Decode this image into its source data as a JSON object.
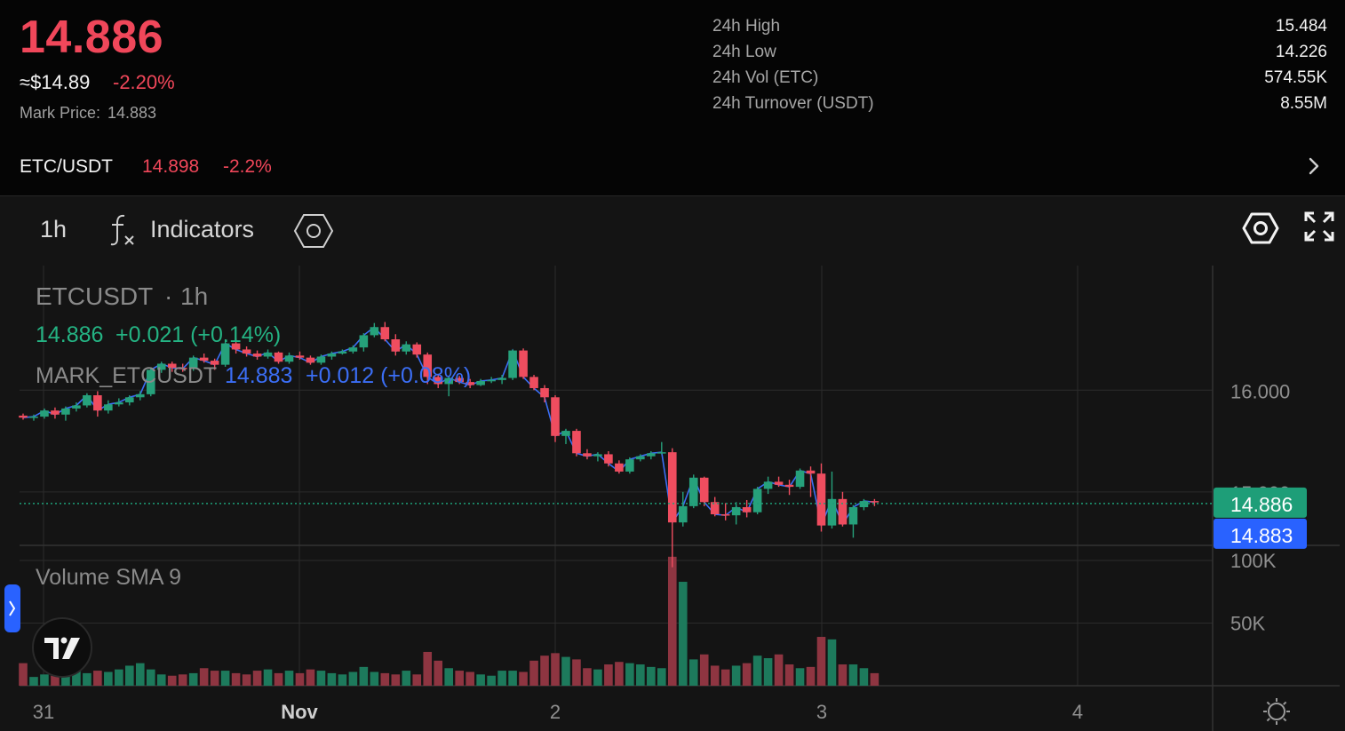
{
  "ticker": {
    "last_price": "14.886",
    "usd_price": "≈$14.89",
    "change_pct": "-2.20%",
    "mark_price_label": "Mark Price:",
    "mark_price_value": "14.883",
    "stats": [
      {
        "label": "24h High",
        "value": "15.484"
      },
      {
        "label": "24h Low",
        "value": "14.226"
      },
      {
        "label": "24h Vol (ETC)",
        "value": "574.55K"
      },
      {
        "label": "24h Turnover (USDT)",
        "value": "8.55M"
      }
    ]
  },
  "pair": {
    "name": "ETC/USDT",
    "price": "14.898",
    "change": "-2.2%"
  },
  "toolbar": {
    "interval": "1h",
    "indicators_label": "Indicators"
  },
  "chart_legend": {
    "symbol": "ETCUSDT",
    "interval": "1h",
    "price": "14.886",
    "change": "+0.021 (+0.14%)",
    "mark_symbol": "MARK_ETCUSDT",
    "mark_price": "14.883",
    "mark_change": "+0.012 (+0.08%)",
    "volume_label": "Volume SMA 9"
  },
  "colors": {
    "up": "#26a17b",
    "down": "#ef4d5f",
    "volume_up": "#1d7a5c",
    "volume_down": "#8e3541",
    "mark_line": "#3b6ef5",
    "last_price_badge": "#1e9e78",
    "mark_price_badge": "#2962ff"
  },
  "icons": {
    "fx": "function-icon",
    "indicator_templates": "hexagon-icon",
    "settings": "gear-icon",
    "fullscreen": "expand-icon",
    "chevron": "chevron-right-icon",
    "logo": "tradingview-logo",
    "side_toggle": "chevron-right-icon",
    "scale_settings": "sun-gear-icon"
  },
  "chart_data": {
    "type": "candlestick",
    "title": "ETCUSDT · 1h",
    "price_axis_ticks": [
      15.0,
      16.0
    ],
    "price_axis_labels": [
      "15.000",
      "16.000"
    ],
    "price_range": [
      14.3,
      17.05
    ],
    "volume_axis_ticks": [
      50000,
      100000
    ],
    "volume_axis_labels": [
      "50K",
      "100K"
    ],
    "volume_range": [
      0,
      105000
    ],
    "x_labels": [
      "31",
      "Nov",
      "2",
      "3",
      "4"
    ],
    "x_label_index": [
      1,
      13,
      25,
      37,
      49
    ],
    "last_price_badge": "14.886",
    "mark_price_badge": "14.883",
    "last_price_value": 14.886,
    "mark_price_value": 14.883,
    "x_label_y_index_spacing": 0.5,
    "candles": [
      [
        15.75,
        15.77,
        15.71,
        15.73,
        18000
      ],
      [
        15.73,
        15.76,
        15.7,
        15.74,
        7000
      ],
      [
        15.74,
        15.82,
        15.72,
        15.8,
        9000
      ],
      [
        15.8,
        15.83,
        15.72,
        15.76,
        8000
      ],
      [
        15.76,
        15.84,
        15.7,
        15.82,
        10000
      ],
      [
        15.82,
        15.88,
        15.79,
        15.85,
        12000
      ],
      [
        15.85,
        15.97,
        15.83,
        15.95,
        10000
      ],
      [
        15.95,
        15.99,
        15.74,
        15.8,
        12000
      ],
      [
        15.8,
        15.9,
        15.77,
        15.86,
        11000
      ],
      [
        15.86,
        15.92,
        15.84,
        15.88,
        13000
      ],
      [
        15.88,
        15.95,
        15.85,
        15.93,
        16000
      ],
      [
        15.93,
        15.99,
        15.9,
        15.96,
        18000
      ],
      [
        15.96,
        16.22,
        15.94,
        16.2,
        13000
      ],
      [
        16.2,
        16.28,
        16.17,
        16.26,
        9000
      ],
      [
        16.26,
        16.28,
        16.18,
        16.22,
        8000
      ],
      [
        16.22,
        16.26,
        16.18,
        16.21,
        9000
      ],
      [
        16.21,
        16.34,
        16.19,
        16.32,
        10000
      ],
      [
        16.32,
        16.36,
        16.27,
        16.29,
        14000
      ],
      [
        16.29,
        16.31,
        16.2,
        16.25,
        12000
      ],
      [
        16.25,
        16.5,
        16.23,
        16.46,
        12000
      ],
      [
        16.46,
        16.51,
        16.36,
        16.4,
        10000
      ],
      [
        16.4,
        16.43,
        16.33,
        16.36,
        9000
      ],
      [
        16.36,
        16.39,
        16.3,
        16.33,
        12000
      ],
      [
        16.33,
        16.4,
        16.31,
        16.37,
        13000
      ],
      [
        16.37,
        16.38,
        16.26,
        16.28,
        10000
      ],
      [
        16.28,
        16.37,
        16.26,
        16.34,
        12000
      ],
      [
        16.34,
        16.38,
        16.3,
        16.32,
        10000
      ],
      [
        16.32,
        16.34,
        16.25,
        16.27,
        13000
      ],
      [
        16.27,
        16.35,
        16.25,
        16.33,
        12000
      ],
      [
        16.33,
        16.38,
        16.3,
        16.36,
        10000
      ],
      [
        16.36,
        16.4,
        16.35,
        16.38,
        9000
      ],
      [
        16.38,
        16.44,
        16.36,
        16.42,
        11000
      ],
      [
        16.42,
        16.56,
        16.38,
        16.54,
        15000
      ],
      [
        16.54,
        16.66,
        16.52,
        16.62,
        11000
      ],
      [
        16.62,
        16.67,
        16.48,
        16.5,
        10000
      ],
      [
        16.5,
        16.55,
        16.34,
        16.38,
        9000
      ],
      [
        16.38,
        16.48,
        16.35,
        16.45,
        12000
      ],
      [
        16.45,
        16.47,
        16.32,
        16.35,
        9000
      ],
      [
        16.35,
        16.37,
        16.06,
        16.13,
        27000
      ],
      [
        16.13,
        16.16,
        16.02,
        16.06,
        20000
      ],
      [
        16.06,
        16.14,
        15.94,
        16.12,
        14000
      ],
      [
        16.12,
        16.14,
        16.06,
        16.08,
        12000
      ],
      [
        16.08,
        16.11,
        16.02,
        16.05,
        11000
      ],
      [
        16.05,
        16.11,
        16.04,
        16.09,
        9000
      ],
      [
        16.09,
        16.13,
        16.07,
        16.1,
        8000
      ],
      [
        16.1,
        16.15,
        16.06,
        16.12,
        12000
      ],
      [
        16.12,
        16.4,
        16.1,
        16.39,
        12000
      ],
      [
        16.39,
        16.41,
        16.11,
        16.13,
        11000
      ],
      [
        16.13,
        16.15,
        16.0,
        16.02,
        20000
      ],
      [
        16.02,
        16.05,
        15.88,
        15.93,
        24000
      ],
      [
        15.93,
        15.95,
        15.49,
        15.55,
        26000
      ],
      [
        15.55,
        15.62,
        15.47,
        15.6,
        23000
      ],
      [
        15.6,
        15.62,
        15.35,
        15.38,
        21000
      ],
      [
        15.38,
        15.42,
        15.32,
        15.35,
        14000
      ],
      [
        15.35,
        15.39,
        15.3,
        15.37,
        13000
      ],
      [
        15.37,
        15.4,
        15.25,
        15.28,
        17000
      ],
      [
        15.28,
        15.31,
        15.18,
        15.2,
        19000
      ],
      [
        15.2,
        15.34,
        15.18,
        15.32,
        18000
      ],
      [
        15.32,
        15.37,
        15.3,
        15.35,
        17000
      ],
      [
        15.35,
        15.4,
        15.32,
        15.38,
        15000
      ],
      [
        15.38,
        15.49,
        15.37,
        15.39,
        14000
      ],
      [
        15.39,
        15.43,
        14.26,
        14.7,
        103000
      ],
      [
        14.7,
        15.0,
        14.66,
        14.86,
        83000
      ],
      [
        14.86,
        15.17,
        14.84,
        15.14,
        21000
      ],
      [
        15.14,
        15.15,
        14.86,
        14.9,
        25000
      ],
      [
        14.9,
        14.95,
        14.76,
        14.78,
        16000
      ],
      [
        14.78,
        14.89,
        14.72,
        14.77,
        13000
      ],
      [
        14.77,
        14.9,
        14.68,
        14.85,
        16000
      ],
      [
        14.85,
        14.92,
        14.75,
        14.8,
        18000
      ],
      [
        14.8,
        15.05,
        14.78,
        15.03,
        24000
      ],
      [
        15.03,
        15.15,
        14.98,
        15.1,
        22000
      ],
      [
        15.1,
        15.15,
        15.05,
        15.07,
        25000
      ],
      [
        15.07,
        15.12,
        14.97,
        15.05,
        17000
      ],
      [
        15.05,
        15.23,
        15.03,
        15.21,
        14000
      ],
      [
        15.21,
        15.25,
        14.95,
        15.18,
        15000
      ],
      [
        15.18,
        15.28,
        14.61,
        14.67,
        39000
      ],
      [
        14.67,
        15.2,
        14.64,
        14.93,
        37000
      ],
      [
        14.93,
        15.0,
        14.66,
        14.68,
        17000
      ],
      [
        14.68,
        14.87,
        14.55,
        14.85,
        17000
      ],
      [
        14.85,
        14.93,
        14.82,
        14.91,
        14000
      ],
      [
        14.91,
        14.93,
        14.86,
        14.9,
        10000
      ]
    ]
  }
}
